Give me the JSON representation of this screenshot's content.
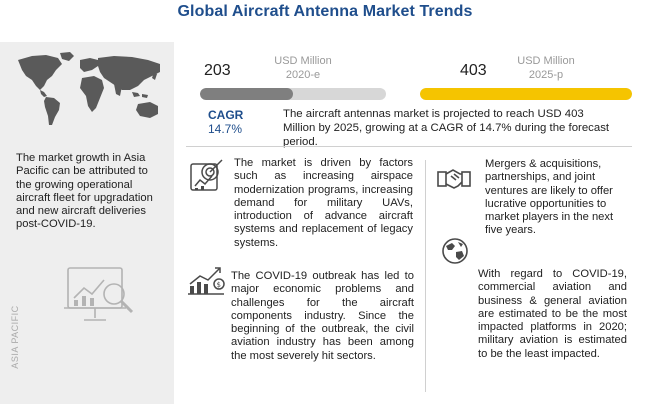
{
  "title": "Global Aircraft Antenna Market Trends",
  "region_label": "ASIA PACIFIC",
  "left_text": "The market growth in Asia Pacific can be attributed to the growing operational aircraft fleet for upgradation and new aircraft deliveries post-COVID-19.",
  "market": {
    "start": {
      "value": "203",
      "unit": "USD Million",
      "year": "2020-e",
      "bar_fraction": 0.5,
      "color": "#7f7f7f"
    },
    "end": {
      "value": "403",
      "unit": "USD Million",
      "year": "2025-p",
      "bar_fraction": 1.0,
      "color": "#f5c400"
    }
  },
  "cagr": {
    "label": "CAGR",
    "value": "14.7%"
  },
  "summary": "The aircraft antennas market is projected to reach USD 403 Million by 2025, growing at a CAGR of 14.7% during the forecast period.",
  "insights": [
    {
      "icon": "target-chart-icon",
      "text": "The market is driven by factors such as increasing airspace modernization programs, increasing demand for military UAVs, introduction of advance aircraft systems and replacement of legacy systems."
    },
    {
      "icon": "growth-chart-icon",
      "text": "The COVID-19 outbreak has led to major economic problems and challenges for the aircraft components industry. Since the beginning of the outbreak, the civil aviation industry has been among the most severely hit sectors."
    },
    {
      "icon": "handshake-icon",
      "text": "Mergers & acquisitions, partnerships, and joint ventures are likely to offer lucrative opportunities to market players in the next five years."
    },
    {
      "icon": "globe-icon",
      "text": "With regard to COVID-19, commercial aviation and business & general aviation are estimated to be the most impacted platforms in 2020; military aviation is estimated to be the least impacted."
    }
  ],
  "colors": {
    "title": "#1f4e8c",
    "accent_yellow": "#f5c400",
    "accent_gray": "#7f7f7f",
    "panel": "#eeeeee"
  }
}
